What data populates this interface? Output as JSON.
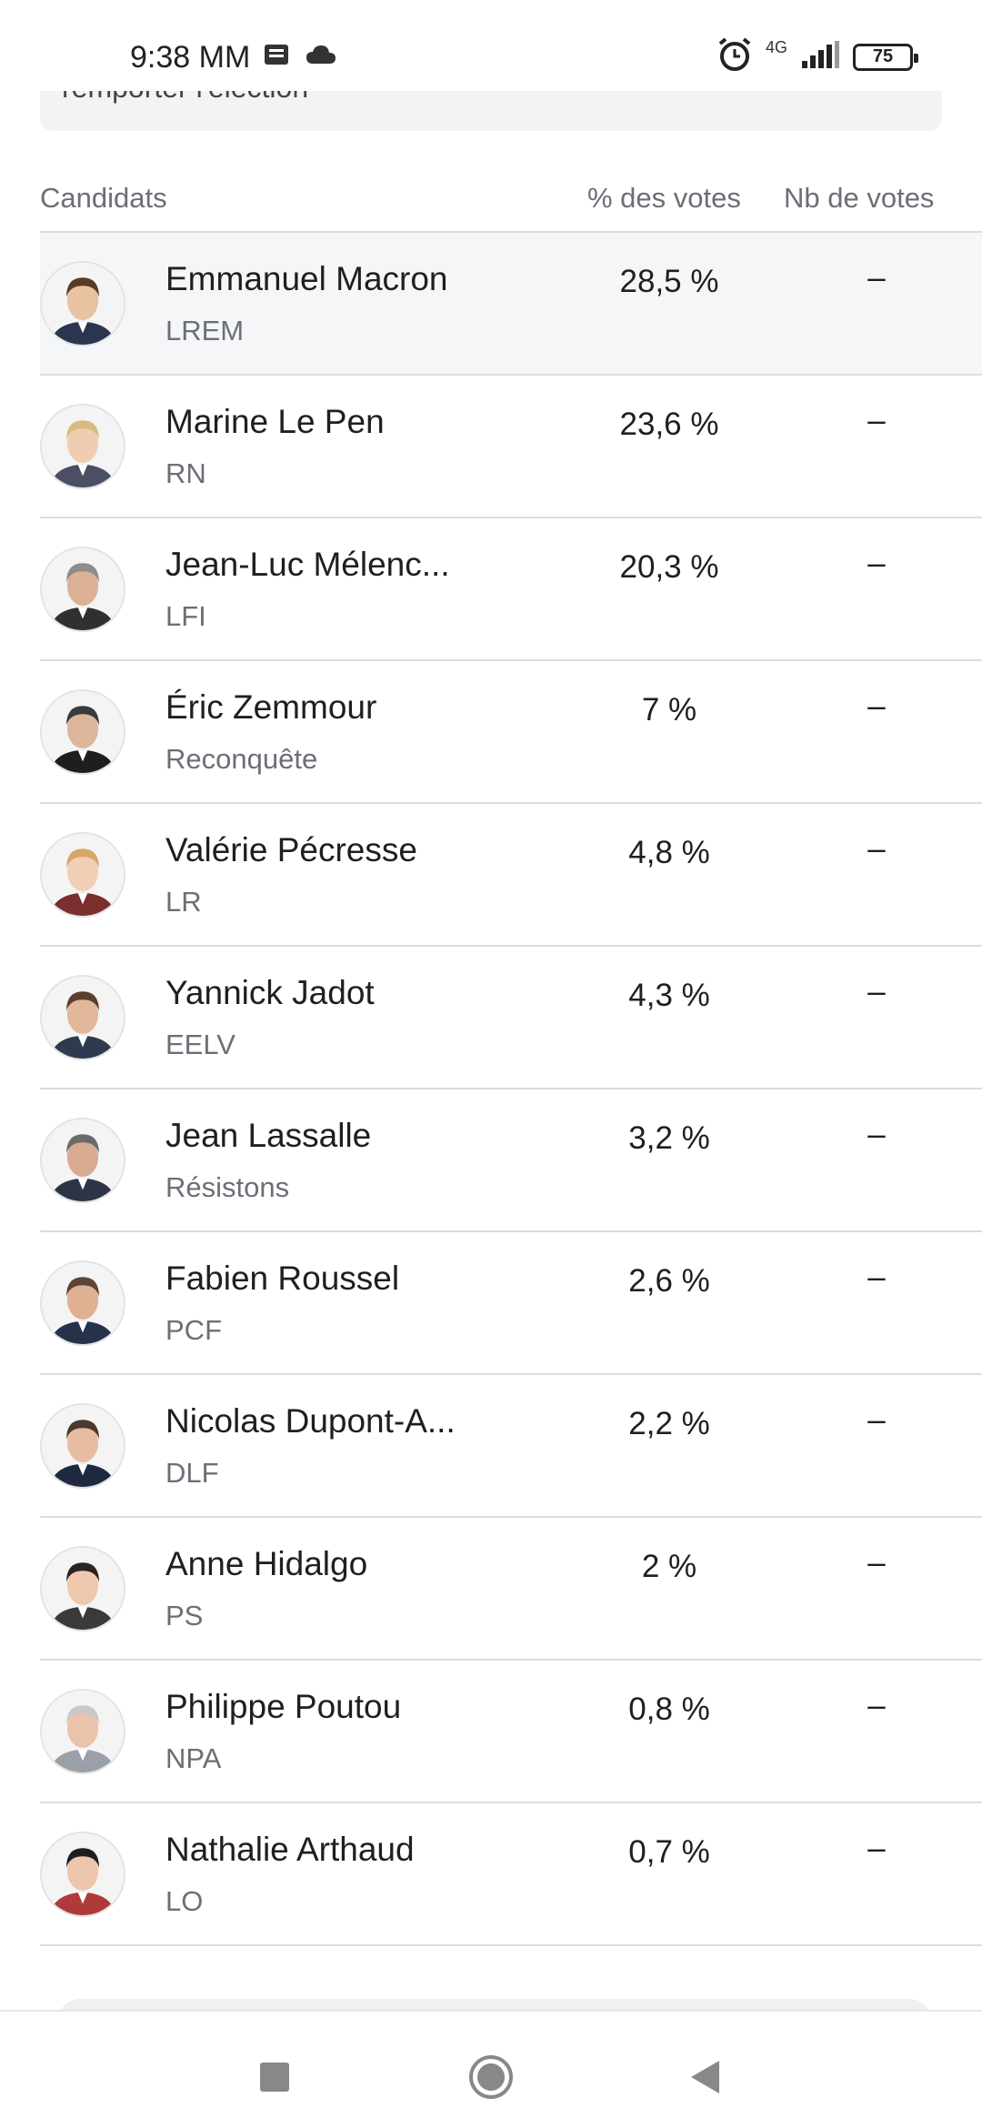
{
  "status": {
    "time": "9:38 MM",
    "network": "4G",
    "battery": "75"
  },
  "banner": {
    "text": "remporter l'élection"
  },
  "table": {
    "headers": {
      "candidate": "Candidats",
      "percent": "% des votes",
      "votes": "Nb de votes"
    },
    "rows": [
      {
        "name": "Emmanuel Macron",
        "party": "LREM",
        "percent": "28,5 %",
        "votes": "–",
        "hair": "#5a3b26",
        "skin": "#e9c2a2",
        "suit": "#2b3550"
      },
      {
        "name": "Marine Le Pen",
        "party": "RN",
        "percent": "23,6 %",
        "votes": "–",
        "hair": "#d9bb82",
        "skin": "#f0cdb2",
        "suit": "#4a4f63"
      },
      {
        "name": "Jean-Luc Mélenc...",
        "party": "LFI",
        "percent": "20,3 %",
        "votes": "–",
        "hair": "#8d8d8d",
        "skin": "#dcb196",
        "suit": "#303030"
      },
      {
        "name": "Éric Zemmour",
        "party": "Reconquête",
        "percent": "7 %",
        "votes": "–",
        "hair": "#3a3a3a",
        "skin": "#dcb59b",
        "suit": "#1e1e1e"
      },
      {
        "name": "Valérie Pécresse",
        "party": "LR",
        "percent": "4,8 %",
        "votes": "–",
        "hair": "#d5a76a",
        "skin": "#f1cfb6",
        "suit": "#7a2e2e"
      },
      {
        "name": "Yannick Jadot",
        "party": "EELV",
        "percent": "4,3 %",
        "votes": "–",
        "hair": "#5b4030",
        "skin": "#e3b89a",
        "suit": "#2e3a4e"
      },
      {
        "name": "Jean Lassalle",
        "party": "Résistons",
        "percent": "3,2 %",
        "votes": "–",
        "hair": "#6a6a6a",
        "skin": "#d8ab90",
        "suit": "#2d3445"
      },
      {
        "name": "Fabien Roussel",
        "party": "PCF",
        "percent": "2,6 %",
        "votes": "–",
        "hair": "#5a4536",
        "skin": "#e0b093",
        "suit": "#26314a"
      },
      {
        "name": "Nicolas Dupont-A...",
        "party": "DLF",
        "percent": "2,2 %",
        "votes": "–",
        "hair": "#4a3a30",
        "skin": "#e6bda1",
        "suit": "#1f2a40"
      },
      {
        "name": "Anne Hidalgo",
        "party": "PS",
        "percent": "2 %",
        "votes": "–",
        "hair": "#2a2320",
        "skin": "#efc8ad",
        "suit": "#3a3a3a"
      },
      {
        "name": "Philippe Poutou",
        "party": "NPA",
        "percent": "0,8 %",
        "votes": "–",
        "hair": "#c9c9c9",
        "skin": "#e9c4aa",
        "suit": "#9aa0a8"
      },
      {
        "name": "Nathalie Arthaud",
        "party": "LO",
        "percent": "0,7 %",
        "votes": "–",
        "hair": "#1e1e22",
        "skin": "#eec6ad",
        "suit": "#b03a3a"
      }
    ]
  },
  "icons": {
    "status": [
      "message-icon",
      "cloud-icon",
      "alarm-icon",
      "signal-icon",
      "battery-icon"
    ],
    "nav": [
      "recents-square-icon",
      "home-circle-icon",
      "back-triangle-icon"
    ]
  }
}
